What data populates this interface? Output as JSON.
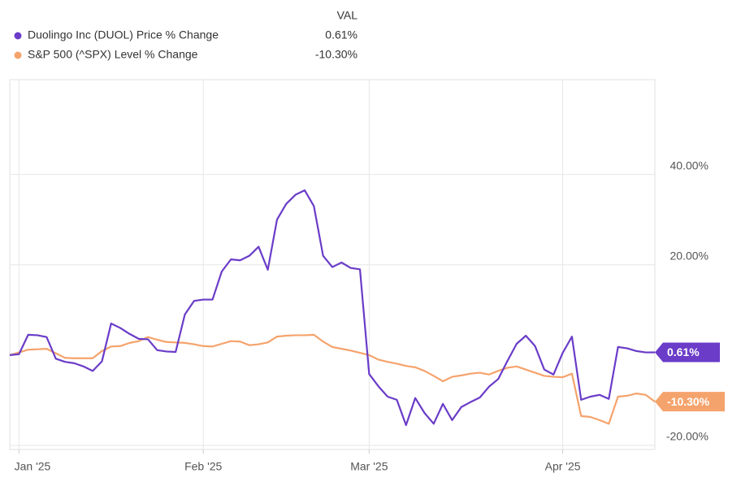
{
  "chart_data": {
    "type": "line",
    "legend_header": "VAL",
    "x": [
      0,
      1,
      2,
      3,
      4,
      5,
      6,
      7,
      8,
      9,
      10,
      11,
      12,
      13,
      14,
      15,
      16,
      17,
      18,
      19,
      20,
      21,
      22,
      23,
      24,
      25,
      26,
      27,
      28,
      29,
      30,
      31,
      32,
      33,
      34,
      35,
      36,
      37,
      38,
      39,
      40,
      41,
      42,
      43,
      44,
      45,
      46,
      47,
      48,
      49,
      50,
      51,
      52,
      53,
      54,
      55,
      56,
      57,
      58,
      59,
      60,
      61,
      62,
      63,
      64,
      65,
      66,
      67,
      68,
      69,
      70
    ],
    "xlim": [
      0,
      70
    ],
    "xticks": [
      {
        "value": 1,
        "label": "Jan '25"
      },
      {
        "value": 21,
        "label": "Feb '25"
      },
      {
        "value": 39,
        "label": "Mar '25"
      },
      {
        "value": 60,
        "label": "Apr '25"
      }
    ],
    "ylim": [
      -20.9,
      61
    ],
    "yticks": [
      {
        "value": -20,
        "label": "-20.00%"
      },
      {
        "value": 20,
        "label": "20.00%"
      },
      {
        "value": 40,
        "label": "40.00%"
      }
    ],
    "grid": true,
    "series": [
      {
        "name": "Duolingo Inc (DUOL) Price % Change",
        "color": "#6a3cc8",
        "latest": {
          "value": 0.61,
          "label": "0.61%"
        },
        "values": [
          0,
          0.2,
          4.5,
          4.4,
          4.0,
          -0.8,
          -1.5,
          -1.8,
          -2.5,
          -3.5,
          -1.4,
          7.0,
          6.0,
          4.7,
          3.6,
          3.5,
          1.1,
          0.8,
          0.7,
          9.0,
          12.0,
          12.3,
          12.3,
          18.5,
          21.2,
          21.0,
          22.0,
          24.0,
          18.9,
          30.0,
          33.5,
          35.5,
          36.5,
          33.0,
          22.0,
          19.5,
          20.5,
          19.3,
          19.0,
          -4.2,
          -6.9,
          -9.2,
          -9.9,
          -15.5,
          -9.5,
          -12.8,
          -15.2,
          -10.8,
          -14.4,
          -11.5,
          -10.4,
          -9.4,
          -7.0,
          -5.3,
          -1.3,
          2.5,
          4.3,
          2.0,
          -3.2,
          -4.3,
          0.5,
          4.1,
          -9.9,
          -9.2,
          -8.8,
          -9.7,
          1.8,
          1.5,
          0.9,
          0.6,
          0.61
        ]
      },
      {
        "name": "S&P 500 (^SPX) Level % Change",
        "color": "#f5a36c",
        "latest": {
          "value": -10.3,
          "label": "-10.30%"
        },
        "values": [
          0,
          0.6,
          1.2,
          1.3,
          1.4,
          0.4,
          -0.6,
          -0.7,
          -0.7,
          -0.7,
          0.9,
          1.9,
          2.0,
          2.7,
          3.1,
          4.0,
          3.4,
          2.9,
          2.8,
          2.7,
          2.4,
          2.0,
          1.9,
          2.5,
          3.1,
          3.0,
          2.2,
          2.4,
          2.8,
          4.1,
          4.3,
          4.4,
          4.4,
          4.5,
          3.0,
          1.8,
          1.4,
          1.0,
          0.5,
          0.0,
          -1.0,
          -1.5,
          -1.9,
          -2.4,
          -2.7,
          -3.5,
          -4.6,
          -5.8,
          -4.8,
          -4.5,
          -4.1,
          -3.9,
          -4.3,
          -3.5,
          -2.8,
          -2.5,
          -3.2,
          -3.9,
          -4.6,
          -4.8,
          -4.9,
          -4.1,
          -13.5,
          -13.7,
          -14.4,
          -15.2,
          -9.2,
          -9.0,
          -8.5,
          -8.8,
          -10.3
        ]
      }
    ]
  }
}
